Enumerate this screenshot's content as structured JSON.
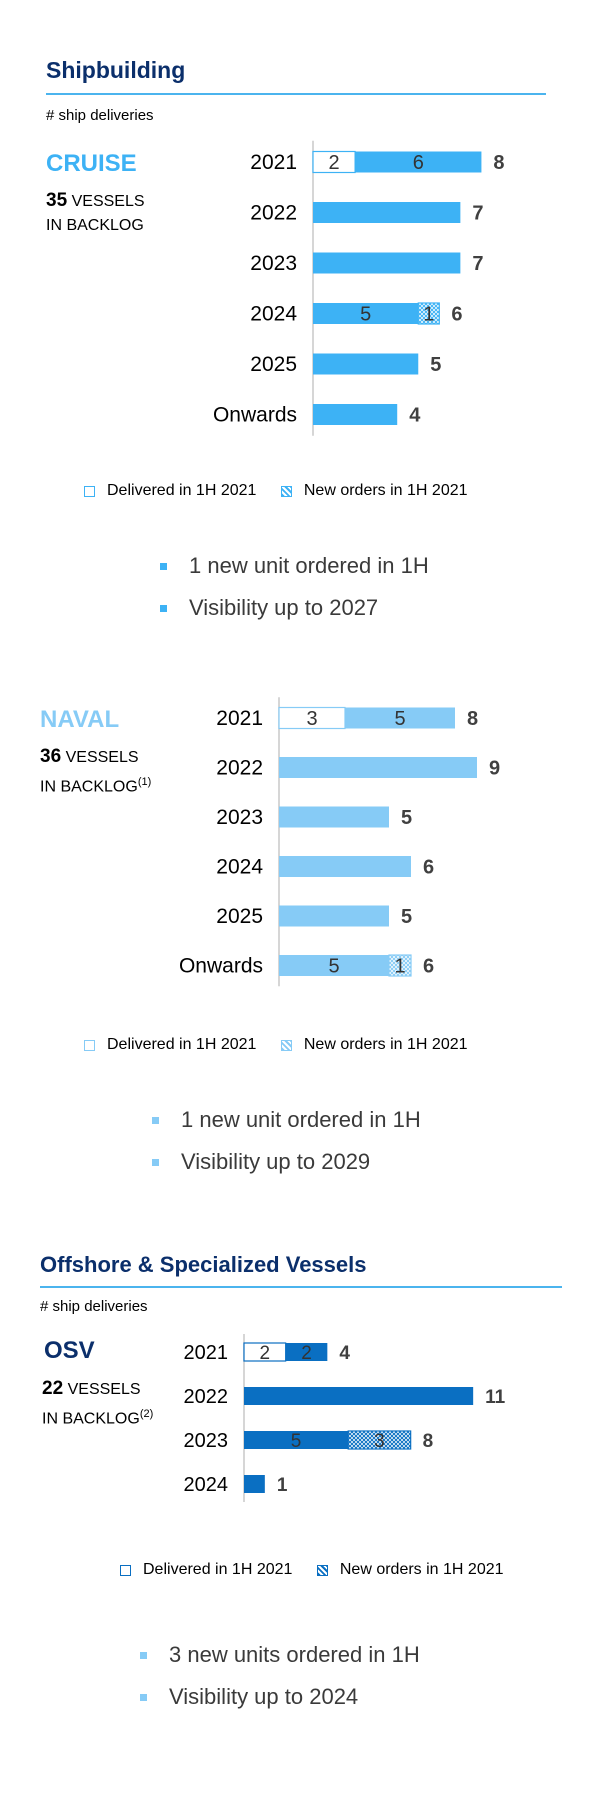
{
  "colors": {
    "cruise": "#3db2f5",
    "naval": "#86cbf6",
    "osv": "#0a6fc2",
    "title_navy": "#0b2f6b",
    "rule": "#4bb4ee",
    "bullet_text": "#3a3a3a",
    "value_text": "#404040"
  },
  "shipbuilding": {
    "title": "Shipbuilding",
    "subtitle": "# ship deliveries"
  },
  "offshore": {
    "title": "Offshore & Specialized Vessels",
    "subtitle": "# ship deliveries"
  },
  "cruise": {
    "name": "CRUISE",
    "backlog_count": "35",
    "backlog_line1": "VESSELS",
    "backlog_line2": "IN BACKLOG",
    "legend": {
      "delivered": "Delivered in 1H 2021",
      "new_orders": "New orders in 1H 2021"
    },
    "bullets": [
      "1 new unit ordered in 1H",
      "Visibility up to 2027"
    ]
  },
  "naval": {
    "name": "NAVAL",
    "backlog_count": "36",
    "backlog_line1": "VESSELS",
    "backlog_line2": "IN BACKLOG",
    "backlog_note": "(1)",
    "legend": {
      "delivered": "Delivered in 1H 2021",
      "new_orders": "New orders in 1H 2021"
    },
    "bullets": [
      "1 new unit ordered in 1H",
      "Visibility up to 2029"
    ]
  },
  "osv": {
    "name": "OSV",
    "backlog_count": "22",
    "backlog_line1": "VESSELS",
    "backlog_line2": "IN BACKLOG",
    "backlog_note": "(2)",
    "legend": {
      "delivered": "Delivered in 1H 2021",
      "new_orders": "New orders in 1H 2021"
    },
    "bullets": [
      "3 new units ordered in 1H",
      "Visibility up to 2024"
    ]
  },
  "chart_data": [
    {
      "type": "bar",
      "orientation": "horizontal",
      "stacked": true,
      "segment": "CRUISE",
      "categories": [
        "2021",
        "2022",
        "2023",
        "2024",
        "2025",
        "Onwards"
      ],
      "totals": [
        8,
        7,
        7,
        6,
        5,
        4
      ],
      "series": [
        {
          "name": "Delivered in 1H 2021",
          "values": [
            2,
            0,
            0,
            0,
            0,
            0
          ]
        },
        {
          "values": [
            6,
            7,
            7,
            5,
            5,
            4
          ]
        },
        {
          "name": "New orders in 1H 2021",
          "values": [
            0,
            0,
            0,
            1,
            0,
            0
          ]
        }
      ],
      "xlim": [
        0,
        9.5
      ],
      "legend_position": "bottom"
    },
    {
      "type": "bar",
      "orientation": "horizontal",
      "stacked": true,
      "segment": "NAVAL",
      "categories": [
        "2021",
        "2022",
        "2023",
        "2024",
        "2025",
        "Onwards"
      ],
      "totals": [
        8,
        9,
        5,
        6,
        5,
        6
      ],
      "series": [
        {
          "name": "Delivered in 1H 2021",
          "values": [
            3,
            0,
            0,
            0,
            0,
            0
          ]
        },
        {
          "values": [
            5,
            9,
            5,
            6,
            5,
            5
          ]
        },
        {
          "name": "New orders in 1H 2021",
          "values": [
            0,
            0,
            0,
            0,
            0,
            1
          ]
        }
      ],
      "xlim": [
        0,
        10
      ],
      "legend_position": "bottom"
    },
    {
      "type": "bar",
      "orientation": "horizontal",
      "stacked": true,
      "segment": "OSV",
      "categories": [
        "2021",
        "2022",
        "2023",
        "2024"
      ],
      "totals": [
        4,
        11,
        8,
        1
      ],
      "series": [
        {
          "name": "Delivered in 1H 2021",
          "values": [
            2,
            0,
            0,
            0
          ]
        },
        {
          "values": [
            2,
            11,
            5,
            1
          ]
        },
        {
          "name": "New orders in 1H 2021",
          "values": [
            0,
            0,
            3,
            0
          ]
        }
      ],
      "xlim": [
        0,
        12
      ],
      "legend_position": "bottom"
    }
  ]
}
